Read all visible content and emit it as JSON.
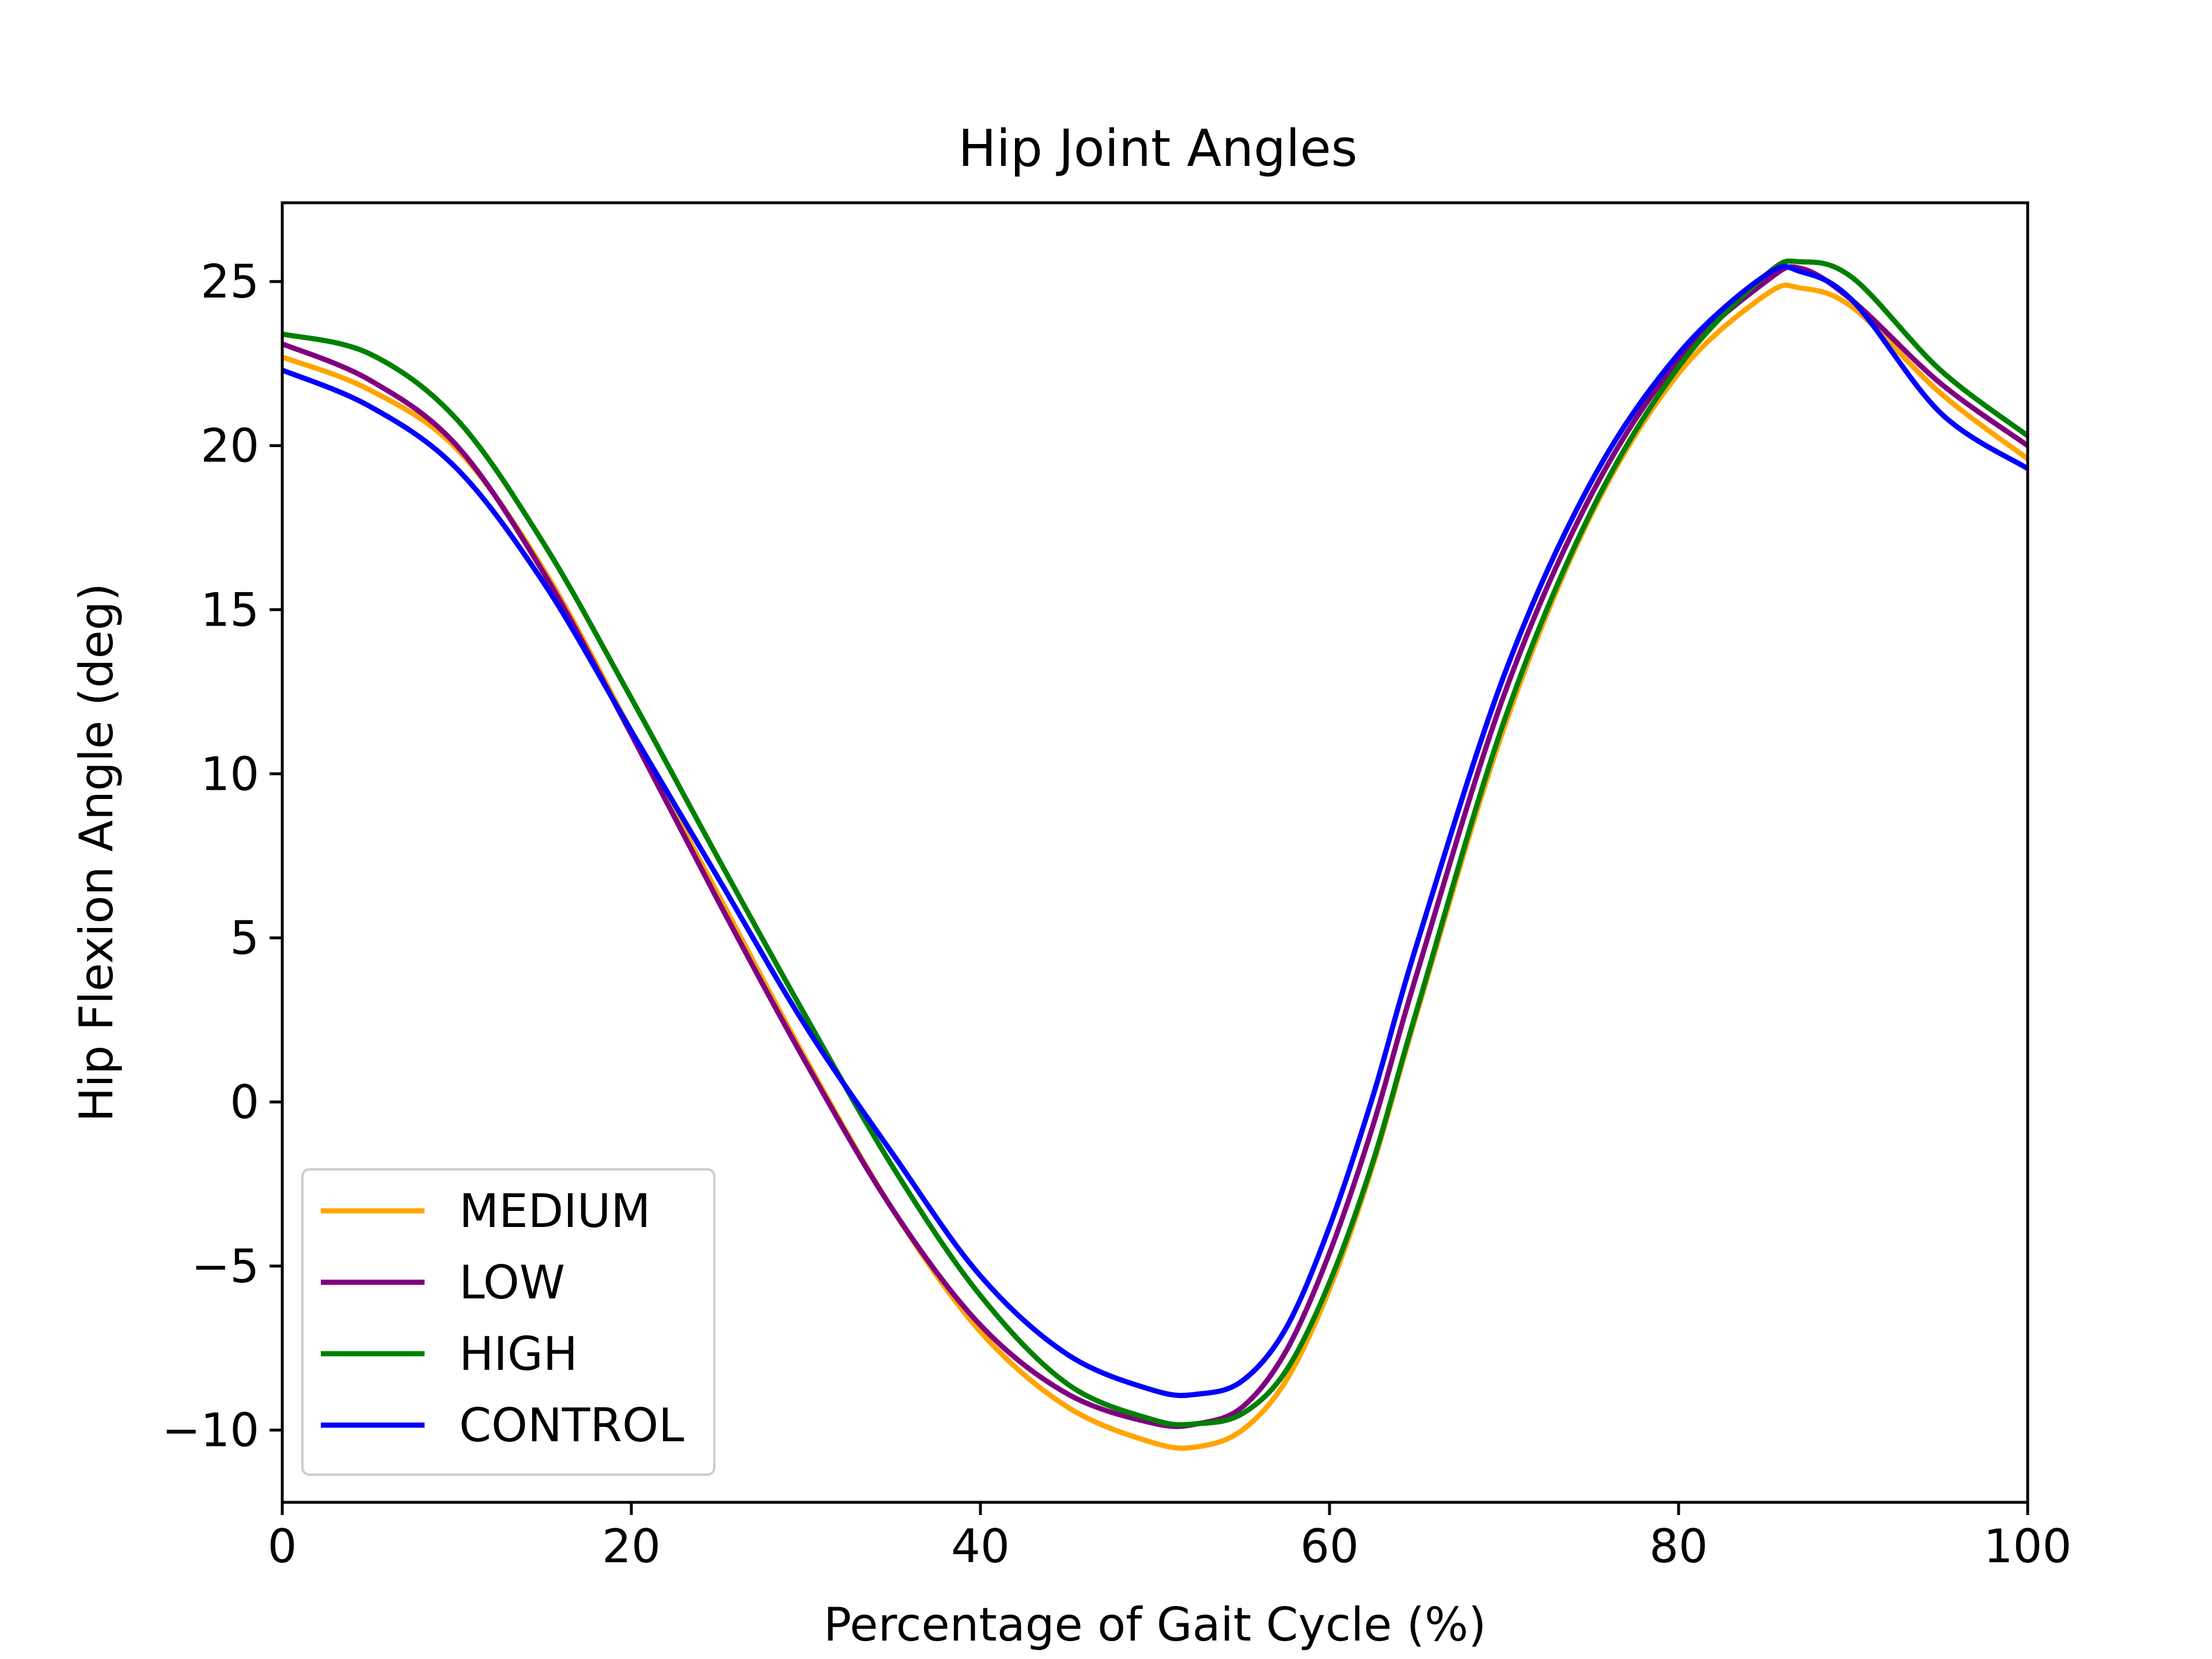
{
  "chart_data": {
    "type": "line",
    "title": "Hip Joint Angles",
    "xlabel": "Percentage of Gait Cycle (%)",
    "ylabel": "Hip Flexion Angle (deg)",
    "xlim": [
      0,
      100
    ],
    "ylim": [
      -12.2,
      27.4
    ],
    "xticks": [
      0,
      20,
      40,
      60,
      80,
      100
    ],
    "xtick_labels": [
      "0",
      "20",
      "40",
      "60",
      "80",
      "100"
    ],
    "yticks": [
      -10,
      -5,
      0,
      5,
      10,
      15,
      20,
      25
    ],
    "ytick_labels": [
      "−10",
      "−5",
      "0",
      "5",
      "10",
      "15",
      "20",
      "25"
    ],
    "grid": false,
    "legend_position": "lower-left",
    "series": [
      {
        "name": "MEDIUM",
        "color": "#ffa500",
        "x": [
          0,
          5,
          10,
          15,
          20,
          25,
          30,
          35,
          40,
          45,
          50,
          52.5,
          55,
          57.5,
          60,
          62.5,
          65,
          70,
          75,
          80,
          85,
          87,
          90,
          95,
          100
        ],
        "y": [
          22.7,
          21.7,
          19.9,
          16.2,
          11.3,
          6.3,
          1.3,
          -3.3,
          -7.0,
          -9.3,
          -10.4,
          -10.5,
          -10.0,
          -8.5,
          -5.7,
          -1.9,
          2.7,
          11.4,
          17.9,
          22.2,
          24.6,
          24.8,
          24.2,
          21.6,
          19.6
        ]
      },
      {
        "name": "LOW",
        "color": "#800080",
        "x": [
          0,
          5,
          10,
          15,
          20,
          25,
          30,
          35,
          40,
          45,
          50,
          52.5,
          55,
          57.5,
          60,
          62.5,
          65,
          70,
          75,
          80,
          85,
          87,
          90,
          95,
          100
        ],
        "y": [
          23.1,
          22.0,
          20.0,
          16.1,
          11.2,
          6.1,
          1.2,
          -3.3,
          -6.8,
          -8.9,
          -9.8,
          -9.8,
          -9.3,
          -7.6,
          -4.6,
          -0.7,
          3.9,
          12.4,
          18.5,
          22.6,
          25.0,
          25.4,
          24.4,
          21.9,
          20.0
        ]
      },
      {
        "name": "HIGH",
        "color": "#008000",
        "x": [
          0,
          5,
          10,
          15,
          20,
          25,
          30,
          35,
          40,
          45,
          50,
          52.5,
          55,
          57.5,
          60,
          62.5,
          65,
          70,
          75,
          80,
          85,
          87,
          90,
          95,
          100
        ],
        "y": [
          23.4,
          22.8,
          20.8,
          17.0,
          12.3,
          7.4,
          2.6,
          -2.0,
          -5.9,
          -8.6,
          -9.7,
          -9.8,
          -9.5,
          -8.2,
          -5.5,
          -1.8,
          2.8,
          11.6,
          18.0,
          22.4,
          25.2,
          25.6,
          25.1,
          22.3,
          20.3
        ]
      },
      {
        "name": "CONTROL",
        "color": "#0000ff",
        "x": [
          0,
          5,
          10,
          15,
          20,
          25,
          30,
          35,
          40,
          45,
          50,
          52.5,
          55,
          57.5,
          60,
          62.5,
          65,
          70,
          75,
          80,
          85,
          87,
          90,
          95,
          100
        ],
        "y": [
          22.3,
          21.2,
          19.3,
          15.8,
          11.3,
          6.8,
          2.3,
          -1.6,
          -5.3,
          -7.7,
          -8.8,
          -8.9,
          -8.5,
          -6.9,
          -3.8,
          0.2,
          4.8,
          13.0,
          18.9,
          22.8,
          25.2,
          25.3,
          24.4,
          21.0,
          19.3
        ]
      }
    ]
  }
}
